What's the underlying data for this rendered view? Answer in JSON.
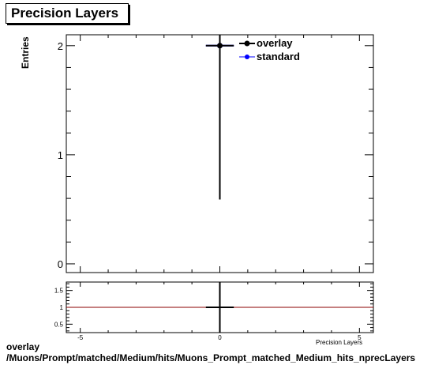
{
  "title": "Precision Layers",
  "footer": {
    "line1": "overlay",
    "line2": "/Muons/Prompt/matched/Medium/hits/Muons_Prompt_matched_Medium_hits_nprecLayers"
  },
  "colors": {
    "overlay": "#000000",
    "standard": "#0000ff",
    "ratio_line": "#8b0000"
  },
  "chart_data": [
    {
      "type": "scatter",
      "title": "Precision Layers",
      "ylabel": "Entries",
      "xlim": [
        -5.5,
        5.5
      ],
      "ylim": [
        -0.08,
        2.1
      ],
      "x_ticks": [
        -5,
        0,
        5
      ],
      "y_ticks": [
        0,
        1,
        2
      ],
      "grid": false,
      "legend_position": "top-right",
      "series": [
        {
          "name": "overlay",
          "x": [
            0
          ],
          "y": [
            2
          ],
          "y_err": [
            1.41
          ],
          "x_err": [
            0.5
          ]
        },
        {
          "name": "standard",
          "x": [
            0
          ],
          "y": [
            2
          ],
          "y_err": [
            1.41
          ],
          "x_err": [
            0.5
          ]
        }
      ]
    },
    {
      "type": "line",
      "xlabel": "Precision Layers",
      "xlim": [
        -5.5,
        5.5
      ],
      "ylim": [
        0.25,
        1.75
      ],
      "x_ticks": [
        -5,
        0,
        5
      ],
      "y_ticks": [
        0.5,
        1,
        1.5
      ],
      "series": [
        {
          "name": "ratio",
          "x": [
            -5.5,
            5.5
          ],
          "y": [
            1,
            1
          ]
        },
        {
          "name": "ratio-point",
          "x": [
            0
          ],
          "y": [
            1
          ],
          "y_err": [
            1.0
          ],
          "x_err": [
            0.5
          ]
        }
      ]
    }
  ]
}
